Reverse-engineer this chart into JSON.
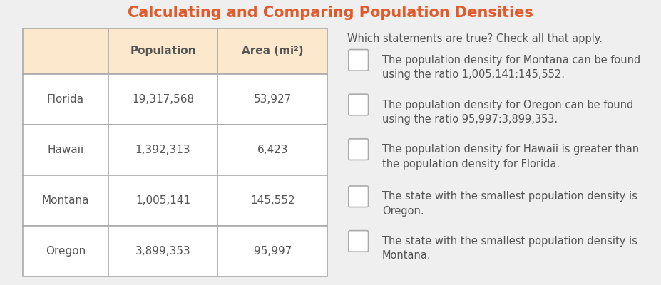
{
  "title": "Calculating and Comparing Population Densities",
  "title_color": "#e05a2b",
  "title_bg": "#f5d5c0",
  "table_headers": [
    "",
    "Population",
    "Area (mi²)"
  ],
  "table_rows": [
    [
      "Florida",
      "19,317,568",
      "53,927"
    ],
    [
      "Hawaii",
      "1,392,313",
      "6,423"
    ],
    [
      "Montana",
      "1,005,141",
      "145,552"
    ],
    [
      "Oregon",
      "3,899,353",
      "95,997"
    ]
  ],
  "header_bg": "#fce8cc",
  "row_bg": "#ffffff",
  "grid_color": "#aaaaaa",
  "statements_title": "Which statements are true? Check all that apply.",
  "statements": [
    "The population density for Montana can be found\nusing the ratio 1,005,141:145,552.",
    "The population density for Oregon can be found\nusing the ratio 95,997:3,899,353.",
    "The population density for Hawaii is greater than\nthe population density for Florida.",
    "The state with the smallest population density is\nOregon.",
    "The state with the smallest population density is\nMontana."
  ],
  "bg_color": "#efefef",
  "content_bg": "#f5f5f5",
  "text_color": "#555555",
  "statement_fontsize": 10.5,
  "table_fontsize": 11,
  "header_fontsize": 11
}
